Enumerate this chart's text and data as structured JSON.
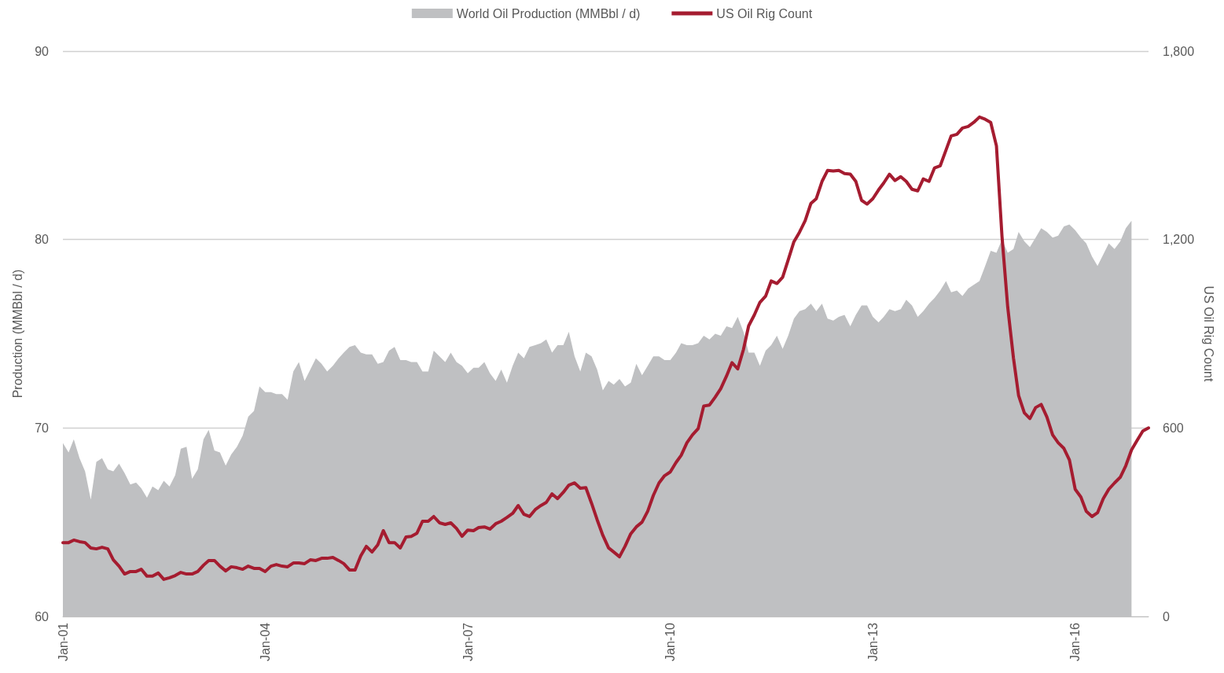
{
  "chart_data": {
    "type": "area",
    "ylabel": "Production (MMBbl / d)",
    "y2label": "US Oil Rig Count",
    "xlim": [
      "2001-01",
      "2017-02"
    ],
    "xticks": [
      {
        "value": "2001-01",
        "label": "Jan-01"
      },
      {
        "value": "2004-01",
        "label": "Jan-04"
      },
      {
        "value": "2007-01",
        "label": "Jan-07"
      },
      {
        "value": "2010-01",
        "label": "Jan-10"
      },
      {
        "value": "2013-01",
        "label": "Jan-13"
      },
      {
        "value": "2016-01",
        "label": "Jan-16"
      }
    ],
    "ylim": [
      60,
      90
    ],
    "yticks": [
      60,
      70,
      80,
      90
    ],
    "y2lim": [
      0,
      1800
    ],
    "y2ticks": [
      0,
      {
        "value": 600,
        "label": "600"
      },
      {
        "value": 1200,
        "label": "1,200"
      },
      {
        "value": 1800,
        "label": "1,800"
      }
    ],
    "grid": "y",
    "legend": "top",
    "marker": "none",
    "line_style": "solid",
    "series": [
      {
        "name": "World Oil Production (MMBbl / d)",
        "color": "#bfc0c2",
        "x": [
          "2001-01",
          "2001-02",
          "2001-03",
          "2001-04",
          "2001-05",
          "2001-06",
          "2001-07",
          "2001-08",
          "2001-09",
          "2001-10",
          "2001-11",
          "2001-12",
          "2002-01",
          "2002-02",
          "2002-03",
          "2002-04",
          "2002-05",
          "2002-06",
          "2002-07",
          "2002-08",
          "2002-09",
          "2002-10",
          "2002-11",
          "2002-12",
          "2003-01",
          "2003-02",
          "2003-03",
          "2003-04",
          "2003-05",
          "2003-06",
          "2003-07",
          "2003-08",
          "2003-09",
          "2003-10",
          "2003-11",
          "2003-12",
          "2004-01",
          "2004-02",
          "2004-03",
          "2004-04",
          "2004-05",
          "2004-06",
          "2004-07",
          "2004-08",
          "2004-09",
          "2004-10",
          "2004-11",
          "2004-12",
          "2005-01",
          "2005-02",
          "2005-03",
          "2005-04",
          "2005-05",
          "2005-06",
          "2005-07",
          "2005-08",
          "2005-09",
          "2005-10",
          "2005-11",
          "2005-12",
          "2006-01",
          "2006-02",
          "2006-03",
          "2006-04",
          "2006-05",
          "2006-06",
          "2006-07",
          "2006-08",
          "2006-09",
          "2006-10",
          "2006-11",
          "2006-12",
          "2007-01",
          "2007-02",
          "2007-03",
          "2007-04",
          "2007-05",
          "2007-06",
          "2007-07",
          "2007-08",
          "2007-09",
          "2007-10",
          "2007-11",
          "2007-12",
          "2008-01",
          "2008-02",
          "2008-03",
          "2008-04",
          "2008-05",
          "2008-06",
          "2008-07",
          "2008-08",
          "2008-09",
          "2008-10",
          "2008-11",
          "2008-12",
          "2009-01",
          "2009-02",
          "2009-03",
          "2009-04",
          "2009-05",
          "2009-06",
          "2009-07",
          "2009-08",
          "2009-09",
          "2009-10",
          "2009-11",
          "2009-12",
          "2010-01",
          "2010-02",
          "2010-03",
          "2010-04",
          "2010-05",
          "2010-06",
          "2010-07",
          "2010-08",
          "2010-09",
          "2010-10",
          "2010-11",
          "2010-12",
          "2011-01",
          "2011-02",
          "2011-03",
          "2011-04",
          "2011-05",
          "2011-06",
          "2011-07",
          "2011-08",
          "2011-09",
          "2011-10",
          "2011-11",
          "2011-12",
          "2012-01",
          "2012-02",
          "2012-03",
          "2012-04",
          "2012-05",
          "2012-06",
          "2012-07",
          "2012-08",
          "2012-09",
          "2012-10",
          "2012-11",
          "2012-12",
          "2013-01",
          "2013-02",
          "2013-03",
          "2013-04",
          "2013-05",
          "2013-06",
          "2013-07",
          "2013-08",
          "2013-09",
          "2013-10",
          "2013-11",
          "2013-12",
          "2014-01",
          "2014-02",
          "2014-03",
          "2014-04",
          "2014-05",
          "2014-06",
          "2014-07",
          "2014-08",
          "2014-09",
          "2014-10",
          "2014-11",
          "2014-12",
          "2015-01",
          "2015-02",
          "2015-03",
          "2015-04",
          "2015-05",
          "2015-06",
          "2015-07",
          "2015-08",
          "2015-09",
          "2015-10",
          "2015-11",
          "2015-12",
          "2016-01",
          "2016-02",
          "2016-03",
          "2016-04",
          "2016-05",
          "2016-06",
          "2016-07",
          "2016-08",
          "2016-09",
          "2016-10",
          "2016-11"
        ],
        "values": [
          69.2,
          68.7,
          69.4,
          68.4,
          67.7,
          66.2,
          68.2,
          68.4,
          67.8,
          67.7,
          68.1,
          67.6,
          67.0,
          67.1,
          66.8,
          66.3,
          66.9,
          66.7,
          67.2,
          66.9,
          67.5,
          68.9,
          69.0,
          67.3,
          67.8,
          69.4,
          69.9,
          68.8,
          68.7,
          68.0,
          68.6,
          69.0,
          69.6,
          70.6,
          70.9,
          72.2,
          71.9,
          71.9,
          71.8,
          71.8,
          71.5,
          73.0,
          73.5,
          72.5,
          73.1,
          73.7,
          73.4,
          73.0,
          73.3,
          73.7,
          74.0,
          74.3,
          74.4,
          74.0,
          73.9,
          73.9,
          73.4,
          73.5,
          74.1,
          74.3,
          73.6,
          73.6,
          73.5,
          73.5,
          73.0,
          73.0,
          74.1,
          73.8,
          73.5,
          74.0,
          73.5,
          73.3,
          72.9,
          73.2,
          73.2,
          73.5,
          72.9,
          72.5,
          73.1,
          72.4,
          73.3,
          74.0,
          73.7,
          74.3,
          74.4,
          74.5,
          74.7,
          74.0,
          74.4,
          74.4,
          75.1,
          73.8,
          73.0,
          74.0,
          73.8,
          73.1,
          72.0,
          72.5,
          72.3,
          72.6,
          72.2,
          72.4,
          73.4,
          72.8,
          73.3,
          73.8,
          73.8,
          73.6,
          73.6,
          74.0,
          74.5,
          74.4,
          74.4,
          74.5,
          74.9,
          74.7,
          75.0,
          74.9,
          75.4,
          75.3,
          75.9,
          75.1,
          74.0,
          74.0,
          73.3,
          74.1,
          74.4,
          74.9,
          74.2,
          74.9,
          75.8,
          76.2,
          76.3,
          76.6,
          76.2,
          76.6,
          75.8,
          75.7,
          75.9,
          76.0,
          75.4,
          76.0,
          76.5,
          76.5,
          75.9,
          75.6,
          75.9,
          76.3,
          76.2,
          76.3,
          76.8,
          76.5,
          75.9,
          76.2,
          76.6,
          76.9,
          77.3,
          77.8,
          77.2,
          77.3,
          77.0,
          77.4,
          77.6,
          77.8,
          78.6,
          79.4,
          79.3,
          80.0,
          79.3,
          79.5,
          80.4,
          79.9,
          79.6,
          80.1,
          80.6,
          80.4,
          80.1,
          80.2,
          80.7,
          80.8,
          80.5,
          80.1,
          79.8,
          79.1,
          78.6,
          79.2,
          79.8,
          79.5,
          79.9,
          80.6,
          81.0
        ]
      },
      {
        "name": "US Oil Rig Count",
        "type": "line",
        "axis": "y2",
        "color": "#a51c30",
        "x": [
          "2001-01",
          "2001-02",
          "2001-03",
          "2001-04",
          "2001-05",
          "2001-06",
          "2001-07",
          "2001-08",
          "2001-09",
          "2001-10",
          "2001-11",
          "2001-12",
          "2002-01",
          "2002-02",
          "2002-03",
          "2002-04",
          "2002-05",
          "2002-06",
          "2002-07",
          "2002-08",
          "2002-09",
          "2002-10",
          "2002-11",
          "2002-12",
          "2003-01",
          "2003-02",
          "2003-03",
          "2003-04",
          "2003-05",
          "2003-06",
          "2003-07",
          "2003-08",
          "2003-09",
          "2003-10",
          "2003-11",
          "2003-12",
          "2004-01",
          "2004-02",
          "2004-03",
          "2004-04",
          "2004-05",
          "2004-06",
          "2004-07",
          "2004-08",
          "2004-09",
          "2004-10",
          "2004-11",
          "2004-12",
          "2005-01",
          "2005-02",
          "2005-03",
          "2005-04",
          "2005-05",
          "2005-06",
          "2005-07",
          "2005-08",
          "2005-09",
          "2005-10",
          "2005-11",
          "2005-12",
          "2006-01",
          "2006-02",
          "2006-03",
          "2006-04",
          "2006-05",
          "2006-06",
          "2006-07",
          "2006-08",
          "2006-09",
          "2006-10",
          "2006-11",
          "2006-12",
          "2007-01",
          "2007-02",
          "2007-03",
          "2007-04",
          "2007-05",
          "2007-06",
          "2007-07",
          "2007-08",
          "2007-09",
          "2007-10",
          "2007-11",
          "2007-12",
          "2008-01",
          "2008-02",
          "2008-03",
          "2008-04",
          "2008-05",
          "2008-06",
          "2008-07",
          "2008-08",
          "2008-09",
          "2008-10",
          "2008-11",
          "2008-12",
          "2009-01",
          "2009-02",
          "2009-03",
          "2009-04",
          "2009-05",
          "2009-06",
          "2009-07",
          "2009-08",
          "2009-09",
          "2009-10",
          "2009-11",
          "2009-12",
          "2010-01",
          "2010-02",
          "2010-03",
          "2010-04",
          "2010-05",
          "2010-06",
          "2010-07",
          "2010-08",
          "2010-09",
          "2010-10",
          "2010-11",
          "2010-12",
          "2011-01",
          "2011-02",
          "2011-03",
          "2011-04",
          "2011-05",
          "2011-06",
          "2011-07",
          "2011-08",
          "2011-09",
          "2011-10",
          "2011-11",
          "2011-12",
          "2012-01",
          "2012-02",
          "2012-03",
          "2012-04",
          "2012-05",
          "2012-06",
          "2012-07",
          "2012-08",
          "2012-09",
          "2012-10",
          "2012-11",
          "2012-12",
          "2013-01",
          "2013-02",
          "2013-03",
          "2013-04",
          "2013-05",
          "2013-06",
          "2013-07",
          "2013-08",
          "2013-09",
          "2013-10",
          "2013-11",
          "2013-12",
          "2014-01",
          "2014-02",
          "2014-03",
          "2014-04",
          "2014-05",
          "2014-06",
          "2014-07",
          "2014-08",
          "2014-09",
          "2014-10",
          "2014-11",
          "2014-12",
          "2015-01",
          "2015-02",
          "2015-03",
          "2015-04",
          "2015-05",
          "2015-06",
          "2015-07",
          "2015-08",
          "2015-09",
          "2015-10",
          "2015-11",
          "2015-12",
          "2016-01",
          "2016-02",
          "2016-03",
          "2016-04",
          "2016-05",
          "2016-06",
          "2016-07",
          "2016-08",
          "2016-09",
          "2016-10",
          "2016-11",
          "2016-12",
          "2017-01",
          "2017-02"
        ],
        "values": [
          235,
          235,
          243,
          238,
          235,
          218,
          215,
          220,
          215,
          180,
          160,
          135,
          143,
          143,
          150,
          128,
          128,
          138,
          118,
          123,
          130,
          140,
          135,
          135,
          143,
          163,
          178,
          178,
          160,
          145,
          158,
          155,
          150,
          160,
          153,
          153,
          143,
          160,
          165,
          160,
          158,
          170,
          170,
          168,
          180,
          178,
          185,
          185,
          188,
          178,
          168,
          148,
          148,
          193,
          223,
          205,
          228,
          273,
          235,
          235,
          218,
          253,
          255,
          265,
          303,
          303,
          318,
          298,
          293,
          298,
          280,
          255,
          275,
          273,
          283,
          285,
          278,
          295,
          303,
          315,
          328,
          353,
          325,
          318,
          340,
          353,
          363,
          390,
          375,
          395,
          418,
          425,
          408,
          410,
          360,
          308,
          258,
          218,
          205,
          190,
          223,
          263,
          285,
          300,
          335,
          385,
          425,
          448,
          460,
          490,
          513,
          553,
          578,
          598,
          670,
          673,
          698,
          725,
          765,
          808,
          788,
          850,
          925,
          960,
          1000,
          1020,
          1068,
          1060,
          1080,
          1135,
          1193,
          1223,
          1260,
          1315,
          1330,
          1385,
          1420,
          1418,
          1420,
          1410,
          1408,
          1385,
          1325,
          1313,
          1330,
          1358,
          1380,
          1408,
          1388,
          1400,
          1385,
          1360,
          1355,
          1393,
          1385,
          1428,
          1435,
          1485,
          1530,
          1535,
          1555,
          1560,
          1573,
          1590,
          1583,
          1573,
          1498,
          1210,
          985,
          823,
          703,
          648,
          630,
          665,
          675,
          635,
          578,
          553,
          535,
          498,
          405,
          380,
          335,
          318,
          330,
          375,
          405,
          425,
          443,
          480,
          530,
          560,
          590,
          600
        ]
      }
    ]
  }
}
